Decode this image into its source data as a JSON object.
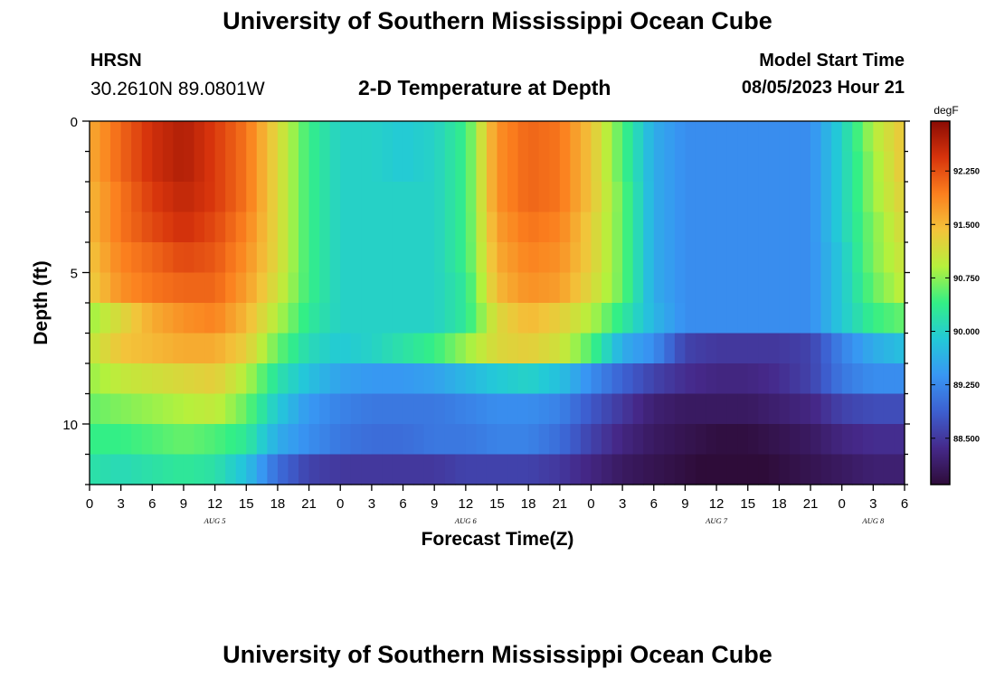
{
  "header": {
    "title": "University of Southern Mississippi Ocean Cube",
    "station": "HRSN",
    "coordinates": "30.2610N  89.0801W",
    "subtitle": "2-D Temperature at Depth",
    "model_start_label": "Model Start Time",
    "model_start_value": "08/05/2023 Hour 21"
  },
  "footer": {
    "title": "University of Southern Mississippi Ocean Cube"
  },
  "colors": {
    "colormap": [
      "#2e0c39",
      "#45298a",
      "#3d5fd0",
      "#3896f3",
      "#23c9d8",
      "#33ef86",
      "#b6f13c",
      "#f3c33a",
      "#fb7f1e",
      "#d7340c",
      "#8b0b04"
    ]
  },
  "chart_data": {
    "type": "heatmap",
    "title": "2-D Temperature at Depth",
    "xlabel": "Forecast Time(Z)",
    "ylabel": "Depth (ft)",
    "colorbar_label": "degF",
    "colorbar_ticks": [
      "92.250",
      "91.500",
      "90.750",
      "90.000",
      "89.250",
      "88.500"
    ],
    "colorbar_tick_values": [
      92.25,
      91.5,
      90.75,
      90.0,
      89.25,
      88.5
    ],
    "color_range": [
      87.85,
      92.95
    ],
    "x_hours_range": [
      0,
      78
    ],
    "x_tick_labels": [
      "0",
      "3",
      "6",
      "9",
      "12",
      "15",
      "18",
      "21",
      "0",
      "3",
      "6",
      "9",
      "12",
      "15",
      "18",
      "21",
      "0",
      "3",
      "6",
      "9",
      "12",
      "15",
      "18",
      "21",
      "0",
      "3",
      "6"
    ],
    "date_labels": [
      {
        "label": "AUG 5",
        "hour": 12
      },
      {
        "label": "AUG 6",
        "hour": 36
      },
      {
        "label": "AUG 7",
        "hour": 60
      },
      {
        "label": "AUG 8",
        "hour": 75
      }
    ],
    "y_range": [
      0,
      12
    ],
    "y_tick_labels": [
      "0",
      "5",
      "10"
    ],
    "y_tick_values": [
      0,
      5,
      10
    ],
    "depth_levels_ft": [
      0.5,
      1.5,
      2.5,
      3.5,
      4.5,
      5.5,
      6.5,
      7.5,
      8.5,
      9.5,
      10.5,
      11.5
    ],
    "time_keyframes_hours": [
      0,
      3,
      6,
      9,
      12,
      15,
      18,
      21,
      24,
      27,
      30,
      33,
      36,
      39,
      42,
      45,
      48,
      51,
      54,
      57,
      60,
      63,
      66,
      69,
      72,
      75,
      78
    ],
    "temperature_degF": [
      [
        91.6,
        92.1,
        92.5,
        92.7,
        92.4,
        92.0,
        91.2,
        90.4,
        90.0,
        90.0,
        89.9,
        90.0,
        90.4,
        91.8,
        92.1,
        92.0,
        91.4,
        90.5,
        89.6,
        89.3,
        89.3,
        89.3,
        89.3,
        89.3,
        90.0,
        90.9,
        91.4
      ],
      [
        91.6,
        92.1,
        92.5,
        92.7,
        92.4,
        92.0,
        91.2,
        90.4,
        90.0,
        90.0,
        89.9,
        90.0,
        90.4,
        91.8,
        92.1,
        92.0,
        91.4,
        90.5,
        89.6,
        89.3,
        89.3,
        89.3,
        89.3,
        89.3,
        90.0,
        90.8,
        91.4
      ],
      [
        91.5,
        92.0,
        92.4,
        92.6,
        92.4,
        92.0,
        91.2,
        90.4,
        90.0,
        90.0,
        90.0,
        90.0,
        90.4,
        91.8,
        92.1,
        92.0,
        91.4,
        90.6,
        89.6,
        89.3,
        89.3,
        89.3,
        89.3,
        89.3,
        90.0,
        90.8,
        91.3
      ],
      [
        91.5,
        92.0,
        92.3,
        92.5,
        92.3,
        91.9,
        91.2,
        90.4,
        90.0,
        90.0,
        90.0,
        90.0,
        90.4,
        91.7,
        92.0,
        91.9,
        91.3,
        90.6,
        89.6,
        89.3,
        89.3,
        89.3,
        89.3,
        89.3,
        90.0,
        90.7,
        91.2
      ],
      [
        91.4,
        91.9,
        92.1,
        92.3,
        92.2,
        91.8,
        91.2,
        90.4,
        90.0,
        90.0,
        90.0,
        90.0,
        90.4,
        91.6,
        91.9,
        91.8,
        91.3,
        90.6,
        89.6,
        89.3,
        89.3,
        89.3,
        89.3,
        89.3,
        89.9,
        90.7,
        91.1
      ],
      [
        91.3,
        91.8,
        92.0,
        92.1,
        92.1,
        91.7,
        91.1,
        90.4,
        90.0,
        90.0,
        90.0,
        90.0,
        90.3,
        91.5,
        91.8,
        91.7,
        91.2,
        90.6,
        89.6,
        89.3,
        89.3,
        89.3,
        89.3,
        89.3,
        89.9,
        90.6,
        91.0
      ],
      [
        90.8,
        91.2,
        91.6,
        91.8,
        91.9,
        91.5,
        90.9,
        90.3,
        90.0,
        90.0,
        90.0,
        90.0,
        90.3,
        91.2,
        91.5,
        91.3,
        90.9,
        90.3,
        89.7,
        89.3,
        89.3,
        89.3,
        89.3,
        89.3,
        89.9,
        90.4,
        90.6
      ],
      [
        91.0,
        91.4,
        91.5,
        91.6,
        91.6,
        91.3,
        90.6,
        90.1,
        89.9,
        90.0,
        90.2,
        90.4,
        90.8,
        91.2,
        91.3,
        91.1,
        90.5,
        89.6,
        89.3,
        88.6,
        88.5,
        88.5,
        88.5,
        88.6,
        89.2,
        89.6,
        89.8
      ],
      [
        90.8,
        91.0,
        91.1,
        91.2,
        91.3,
        90.9,
        90.2,
        89.8,
        89.5,
        89.4,
        89.4,
        89.5,
        89.7,
        89.9,
        90.0,
        89.8,
        89.3,
        88.9,
        88.6,
        88.4,
        88.3,
        88.3,
        88.4,
        88.6,
        89.1,
        89.3,
        89.3
      ],
      [
        90.6,
        90.7,
        90.8,
        90.9,
        91.0,
        90.6,
        89.9,
        89.4,
        89.2,
        89.1,
        89.1,
        89.1,
        89.2,
        89.3,
        89.3,
        89.2,
        88.8,
        88.5,
        88.2,
        88.1,
        88.1,
        88.1,
        88.2,
        88.3,
        88.6,
        88.7,
        88.7
      ],
      [
        90.4,
        90.4,
        90.5,
        90.6,
        90.5,
        90.3,
        89.6,
        89.3,
        89.1,
        89.0,
        89.0,
        89.1,
        89.1,
        89.2,
        89.2,
        89.0,
        88.6,
        88.3,
        88.1,
        88.0,
        87.9,
        87.9,
        88.0,
        88.1,
        88.3,
        88.4,
        88.4
      ],
      [
        90.2,
        90.1,
        90.2,
        90.3,
        90.2,
        89.8,
        89.0,
        88.6,
        88.5,
        88.5,
        88.5,
        88.5,
        88.6,
        88.6,
        88.6,
        88.5,
        88.3,
        88.1,
        88.0,
        87.9,
        87.8,
        87.8,
        87.9,
        88.0,
        88.1,
        88.2,
        88.2
      ]
    ]
  }
}
